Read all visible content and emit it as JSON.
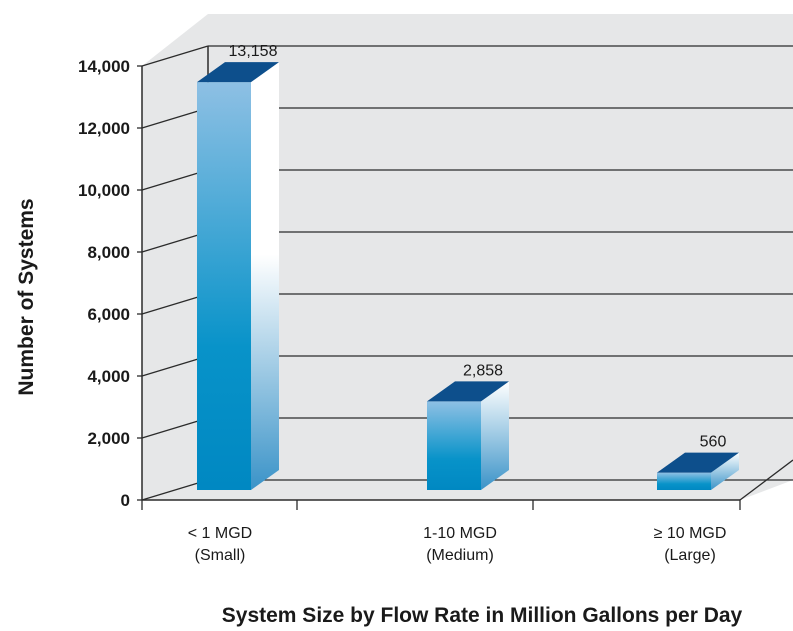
{
  "chart_data": {
    "type": "bar",
    "categories": [
      {
        "line1": "< 1 MGD",
        "line2": "(Small)"
      },
      {
        "line1": "1-10 MGD",
        "line2": "(Medium)"
      },
      {
        "line1": "≥ 10 MGD",
        "line2": "(Large)"
      }
    ],
    "values": [
      13158,
      2858,
      560
    ],
    "data_labels": [
      "13,158",
      "2,858",
      "560"
    ],
    "xlabel": "System Size by Flow Rate in Million Gallons per Day",
    "ylabel": "Number of Systems",
    "ylim": [
      0,
      14000
    ],
    "yticks": [
      {
        "value": 0,
        "label": "0"
      },
      {
        "value": 2000,
        "label": "2,000"
      },
      {
        "value": 4000,
        "label": "4,000"
      },
      {
        "value": 6000,
        "label": "6,000"
      },
      {
        "value": 8000,
        "label": "8,000"
      },
      {
        "value": 10000,
        "label": "10,000"
      },
      {
        "value": 12000,
        "label": "12,000"
      },
      {
        "value": 14000,
        "label": "14,000"
      }
    ],
    "grid": true,
    "style": "3d",
    "colors": {
      "bar_front_top": "#8ec0e4",
      "bar_front_bottom": "#0088c2",
      "bar_top": "#0d4f8c",
      "bar_side": "#ffffff",
      "wall": "#e6e7e8",
      "grid": "#2b2b2b"
    }
  }
}
